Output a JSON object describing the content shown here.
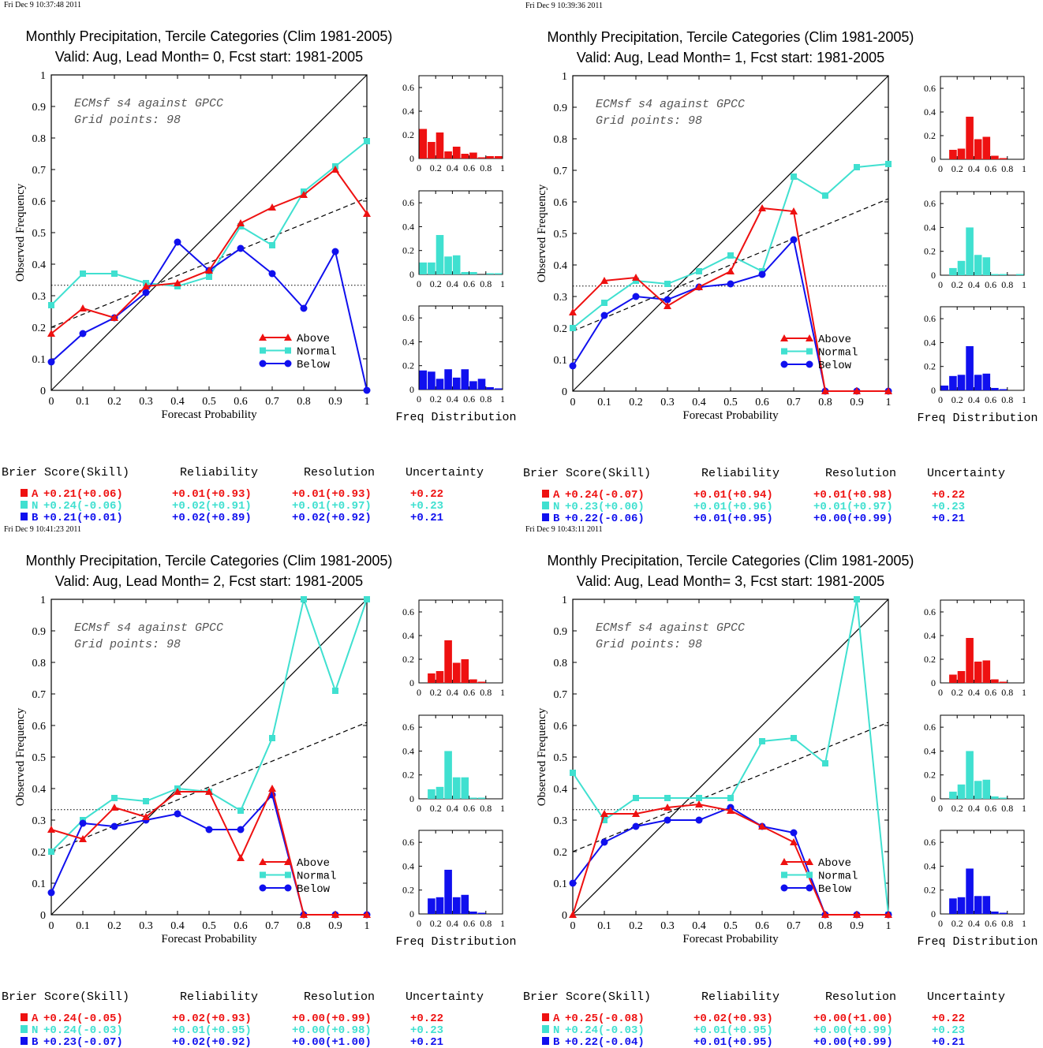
{
  "colors": {
    "above": "#ee1111",
    "normal": "#40e0d0",
    "below": "#1010ee",
    "axis": "#000000"
  },
  "common": {
    "xlabel": "Forecast Probability",
    "ylabel": "Observed Frequency",
    "annotation_line1": "ECMsf s4 against GPCC",
    "annotation_line2": "Grid points:   98",
    "freq_label": "Freq Distribution",
    "legend": [
      "Above",
      "Normal",
      "Below"
    ],
    "stats_headers": [
      "Brier Score(Skill)",
      "Reliability",
      "Resolution",
      "Uncertainty"
    ],
    "row_letters": [
      "A",
      "N",
      "B"
    ]
  },
  "chart_data": [
    {
      "type": "line",
      "timestamp": "Fri Dec  9 10:37:48 2011",
      "title": "Monthly Precipitation, Tercile Categories (Clim 1981-2005)",
      "subtitle": "Valid: Aug, Lead Month= 0, Fcst start: 1981-2005",
      "x": [
        0,
        0.1,
        0.2,
        0.3,
        0.4,
        0.5,
        0.6,
        0.7,
        0.8,
        0.9,
        1
      ],
      "xlim": [
        0,
        1
      ],
      "ylim": [
        0,
        1
      ],
      "series": [
        {
          "name": "Above",
          "values": [
            0.18,
            0.26,
            0.23,
            0.33,
            0.34,
            0.38,
            0.53,
            0.58,
            0.62,
            0.7,
            0.56
          ]
        },
        {
          "name": "Normal",
          "values": [
            0.27,
            0.37,
            0.37,
            0.34,
            0.33,
            0.36,
            0.52,
            0.46,
            0.63,
            0.71,
            0.79
          ]
        },
        {
          "name": "Below",
          "values": [
            0.09,
            0.18,
            0.23,
            0.31,
            0.47,
            0.38,
            0.45,
            0.37,
            0.26,
            0.44,
            0.0
          ]
        }
      ],
      "climatology": 0.333,
      "regression": [
        0.2,
        0.61
      ],
      "freq_hist": {
        "ylim": [
          0,
          0.7
        ],
        "above": [
          0.25,
          0.14,
          0.22,
          0.06,
          0.1,
          0.04,
          0.05,
          0.01,
          0.02,
          0.02
        ],
        "normal": [
          0.1,
          0.1,
          0.33,
          0.15,
          0.16,
          0.02,
          0.02,
          0.0,
          0.01,
          0.01
        ],
        "below": [
          0.16,
          0.15,
          0.09,
          0.17,
          0.1,
          0.17,
          0.07,
          0.09,
          0.02,
          0.01
        ]
      },
      "stats": [
        [
          "+0.21(+0.06)",
          "+0.01(+0.93)",
          "+0.01(+0.93)",
          "+0.22"
        ],
        [
          "+0.24(-0.06)",
          "+0.02(+0.91)",
          "+0.01(+0.97)",
          "+0.23"
        ],
        [
          "+0.21(+0.01)",
          "+0.02(+0.89)",
          "+0.02(+0.92)",
          "+0.21"
        ]
      ]
    },
    {
      "type": "line",
      "timestamp": "Fri Dec  9 10:39:36 2011",
      "title": "Monthly Precipitation, Tercile Categories (Clim 1981-2005)",
      "subtitle": "Valid: Aug, Lead Month= 1, Fcst start: 1981-2005",
      "x": [
        0,
        0.1,
        0.2,
        0.3,
        0.4,
        0.5,
        0.6,
        0.7,
        0.8,
        0.9,
        1
      ],
      "xlim": [
        0,
        1
      ],
      "ylim": [
        0,
        1
      ],
      "series": [
        {
          "name": "Above",
          "values": [
            0.25,
            0.35,
            0.36,
            0.27,
            0.33,
            0.38,
            0.58,
            0.57,
            0.0,
            0.0,
            0.0
          ]
        },
        {
          "name": "Normal",
          "values": [
            0.2,
            0.28,
            0.35,
            0.34,
            0.38,
            0.43,
            0.38,
            0.68,
            0.62,
            0.71,
            0.72
          ]
        },
        {
          "name": "Below",
          "values": [
            0.08,
            0.24,
            0.3,
            0.29,
            0.33,
            0.34,
            0.37,
            0.48,
            0.0,
            0.0,
            0.0
          ]
        }
      ],
      "climatology": 0.333,
      "regression": [
        0.19,
        0.61
      ],
      "freq_hist": {
        "ylim": [
          0,
          0.7
        ],
        "above": [
          0.0,
          0.08,
          0.09,
          0.36,
          0.17,
          0.19,
          0.03,
          0.01,
          0.0,
          0.0
        ],
        "normal": [
          0.0,
          0.06,
          0.12,
          0.4,
          0.17,
          0.15,
          0.01,
          0.01,
          0.0,
          0.01
        ],
        "below": [
          0.04,
          0.12,
          0.13,
          0.37,
          0.13,
          0.14,
          0.02,
          0.01,
          0.0,
          0.0
        ]
      },
      "stats": [
        [
          "+0.24(-0.07)",
          "+0.01(+0.94)",
          "+0.01(+0.98)",
          "+0.22"
        ],
        [
          "+0.23(+0.00)",
          "+0.01(+0.96)",
          "+0.01(+0.97)",
          "+0.23"
        ],
        [
          "+0.22(-0.06)",
          "+0.01(+0.95)",
          "+0.00(+0.99)",
          "+0.21"
        ]
      ]
    },
    {
      "type": "line",
      "timestamp": "Fri Dec  9 10:41:23 2011",
      "title": "Monthly Precipitation, Tercile Categories (Clim 1981-2005)",
      "subtitle": "Valid: Aug, Lead Month= 2, Fcst start: 1981-2005",
      "x": [
        0,
        0.1,
        0.2,
        0.3,
        0.4,
        0.5,
        0.6,
        0.7,
        0.8,
        0.9,
        1
      ],
      "xlim": [
        0,
        1
      ],
      "ylim": [
        0,
        1
      ],
      "series": [
        {
          "name": "Above",
          "values": [
            0.27,
            0.24,
            0.34,
            0.31,
            0.39,
            0.39,
            0.18,
            0.4,
            0.0,
            0.0,
            0.0
          ]
        },
        {
          "name": "Normal",
          "values": [
            0.2,
            0.3,
            0.37,
            0.36,
            0.4,
            0.39,
            0.33,
            0.56,
            1.0,
            0.71,
            1.0
          ]
        },
        {
          "name": "Below",
          "values": [
            0.07,
            0.29,
            0.28,
            0.3,
            0.32,
            0.27,
            0.27,
            0.38,
            0.0,
            0.0,
            0.0
          ]
        }
      ],
      "climatology": 0.333,
      "regression": [
        0.2,
        0.61
      ],
      "freq_hist": {
        "ylim": [
          0,
          0.7
        ],
        "above": [
          0.0,
          0.08,
          0.1,
          0.36,
          0.17,
          0.2,
          0.03,
          0.01,
          0.0,
          0.0
        ],
        "normal": [
          0.0,
          0.08,
          0.1,
          0.4,
          0.18,
          0.18,
          0.01,
          0.01,
          0.0,
          0.0
        ],
        "below": [
          0.0,
          0.13,
          0.14,
          0.37,
          0.14,
          0.16,
          0.02,
          0.01,
          0.0,
          0.0
        ]
      },
      "stats": [
        [
          "+0.24(-0.05)",
          "+0.02(+0.93)",
          "+0.00(+0.99)",
          "+0.22"
        ],
        [
          "+0.24(-0.03)",
          "+0.01(+0.95)",
          "+0.00(+0.98)",
          "+0.23"
        ],
        [
          "+0.23(-0.07)",
          "+0.02(+0.92)",
          "+0.00(+1.00)",
          "+0.21"
        ]
      ]
    },
    {
      "type": "line",
      "timestamp": "Fri Dec  9 10:43:11 2011",
      "title": "Monthly Precipitation, Tercile Categories (Clim 1981-2005)",
      "subtitle": "Valid: Aug, Lead Month= 3, Fcst start: 1981-2005",
      "x": [
        0,
        0.1,
        0.2,
        0.3,
        0.4,
        0.5,
        0.6,
        0.7,
        0.8,
        0.9,
        1
      ],
      "xlim": [
        0,
        1
      ],
      "ylim": [
        0,
        1
      ],
      "series": [
        {
          "name": "Above",
          "values": [
            0.0,
            0.32,
            0.32,
            0.34,
            0.35,
            0.33,
            0.28,
            0.23,
            0.0,
            0.0,
            0.0
          ]
        },
        {
          "name": "Normal",
          "values": [
            0.45,
            0.3,
            0.37,
            0.37,
            0.37,
            0.37,
            0.55,
            0.56,
            0.48,
            1.0,
            0.0
          ]
        },
        {
          "name": "Below",
          "values": [
            0.1,
            0.23,
            0.28,
            0.3,
            0.3,
            0.34,
            0.28,
            0.26,
            0.0,
            0.0,
            0.0
          ]
        }
      ],
      "climatology": 0.333,
      "regression": [
        0.2,
        0.61
      ],
      "freq_hist": {
        "ylim": [
          0,
          0.7
        ],
        "above": [
          0.0,
          0.07,
          0.1,
          0.38,
          0.18,
          0.19,
          0.03,
          0.01,
          0.0,
          0.0
        ],
        "normal": [
          0.0,
          0.06,
          0.12,
          0.4,
          0.15,
          0.16,
          0.02,
          0.01,
          0.0,
          0.0
        ],
        "below": [
          0.0,
          0.13,
          0.14,
          0.38,
          0.15,
          0.15,
          0.02,
          0.01,
          0.0,
          0.0
        ]
      },
      "stats": [
        [
          "+0.25(-0.08)",
          "+0.02(+0.93)",
          "+0.00(+1.00)",
          "+0.22"
        ],
        [
          "+0.24(-0.03)",
          "+0.01(+0.95)",
          "+0.00(+0.99)",
          "+0.23"
        ],
        [
          "+0.22(-0.04)",
          "+0.01(+0.95)",
          "+0.00(+0.99)",
          "+0.21"
        ]
      ]
    }
  ]
}
